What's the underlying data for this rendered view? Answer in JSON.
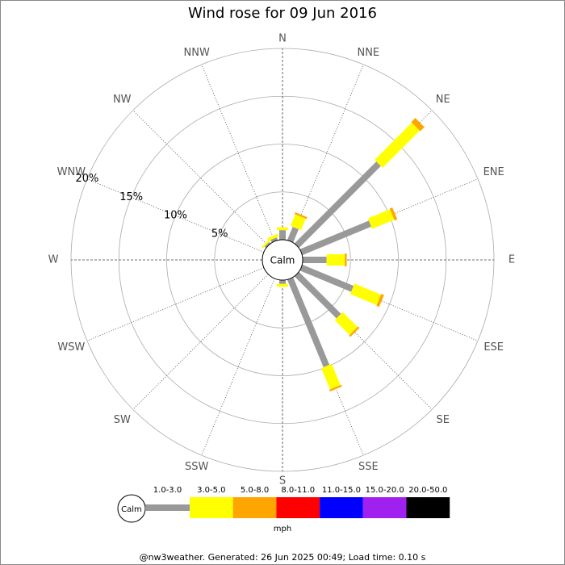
{
  "chart_data": {
    "type": "wind_rose",
    "title": "Wind rose for 09 Jun 2016",
    "center_label": "Calm",
    "categories": [
      "N",
      "NNE",
      "NE",
      "ENE",
      "E",
      "ESE",
      "SE",
      "SSE",
      "S",
      "SSW",
      "SW",
      "WSW",
      "W",
      "WNW",
      "NW",
      "NNW"
    ],
    "rlim": [
      0,
      20
    ],
    "rticks": [
      {
        "value": 5,
        "label": "5%"
      },
      {
        "value": 10,
        "label": "10%"
      },
      {
        "value": 15,
        "label": "15%"
      },
      {
        "value": 20,
        "label": "20%"
      }
    ],
    "series": [
      {
        "name": "1.0-3.0",
        "color": "#999999",
        "values": [
          1.0,
          1.5,
          12.1,
          7.8,
          2.5,
          5.8,
          6.2,
          9.9,
          0.4,
          0,
          0,
          0,
          0,
          0,
          0.2,
          0.3
        ]
      },
      {
        "name": "3.0-5.0",
        "color": "#ffff00",
        "values": [
          0.3,
          1.3,
          5.5,
          2.5,
          1.9,
          3.0,
          2.2,
          2.4,
          0.3,
          0,
          0,
          0,
          0,
          0,
          0.2,
          0.3
        ]
      },
      {
        "name": "5.0-8.0",
        "color": "#ffa500",
        "values": [
          0,
          0.2,
          0.6,
          0.3,
          0.2,
          0.3,
          0.2,
          0.2,
          0,
          0,
          0,
          0,
          0,
          0,
          0,
          0
        ]
      },
      {
        "name": "8.0-11.0",
        "color": "#ff0000",
        "values": [
          0,
          0,
          0,
          0,
          0,
          0,
          0,
          0,
          0,
          0,
          0,
          0,
          0,
          0,
          0,
          0
        ]
      },
      {
        "name": "11.0-15.0",
        "color": "#0000ff",
        "values": [
          0,
          0,
          0,
          0,
          0,
          0,
          0,
          0,
          0,
          0,
          0,
          0,
          0,
          0,
          0,
          0
        ]
      },
      {
        "name": "15.0-20.0",
        "color": "#a020f0",
        "values": [
          0,
          0,
          0,
          0,
          0,
          0,
          0,
          0,
          0,
          0,
          0,
          0,
          0,
          0,
          0,
          0
        ]
      },
      {
        "name": "20.0-50.0",
        "color": "#000000",
        "values": [
          0,
          0,
          0,
          0,
          0,
          0,
          0,
          0,
          0,
          0,
          0,
          0,
          0,
          0,
          0,
          0
        ]
      }
    ],
    "legend_calm": "Calm",
    "units": "mph",
    "footer": "@nw3weather. Generated: 26 Jun 2025 00:49; Load time: 0.10 s"
  }
}
